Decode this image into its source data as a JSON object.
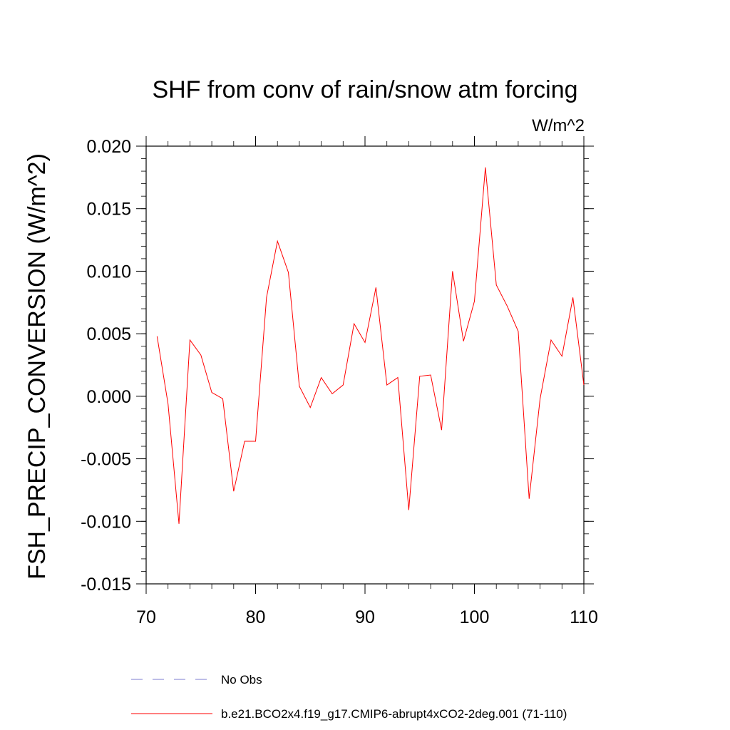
{
  "chart_data": {
    "type": "line",
    "title": "SHF from conv of rain/snow atm forcing",
    "units": "W/m^2",
    "xlabel": "",
    "ylabel": "FSH_PRECIP_CONVERSION  (W/m^2)",
    "xlim": [
      70,
      110
    ],
    "ylim": [
      -0.015,
      0.02
    ],
    "x_ticks": [
      70,
      80,
      90,
      100,
      110
    ],
    "x_tick_labels": [
      "70",
      "80",
      "90",
      "100",
      "110"
    ],
    "y_ticks": [
      -0.015,
      -0.01,
      -0.005,
      0.0,
      0.005,
      0.01,
      0.015,
      0.02
    ],
    "y_tick_labels": [
      "-0.015",
      "-0.010",
      "-0.005",
      "0.000",
      "0.005",
      "0.010",
      "0.015",
      "0.020"
    ],
    "grid": false,
    "series": [
      {
        "name": "b.e21.BCO2x4.f19_g17.CMIP6-abrupt4xCO2-2deg.001 (71-110)",
        "color": "#ff0000",
        "dash": "solid",
        "x": [
          71,
          72,
          73,
          74,
          75,
          76,
          77,
          78,
          79,
          80,
          81,
          82,
          83,
          84,
          85,
          86,
          87,
          88,
          89,
          90,
          91,
          92,
          93,
          94,
          95,
          96,
          97,
          98,
          99,
          100,
          101,
          102,
          103,
          104,
          105,
          106,
          107,
          108,
          109,
          110
        ],
        "values": [
          0.0048,
          -0.0006,
          -0.0102,
          0.0045,
          0.0033,
          0.0003,
          -0.0002,
          -0.0076,
          -0.0036,
          -0.0036,
          0.0079,
          0.0124,
          0.0099,
          0.0008,
          -0.0009,
          0.0015,
          0.0002,
          0.0009,
          0.0058,
          0.0043,
          0.0087,
          0.0009,
          0.0015,
          -0.0091,
          0.0016,
          0.0017,
          -0.0027,
          0.01,
          0.0044,
          0.0076,
          0.0183,
          0.0089,
          0.0072,
          0.0052,
          -0.0082,
          -0.0002,
          0.0045,
          0.0032,
          0.0079,
          0.0009
        ]
      }
    ],
    "legend": {
      "placement": "bottom",
      "entries": [
        {
          "label": "No Obs",
          "color": "#7b7bd1",
          "dash": "dashed"
        },
        {
          "label": "b.e21.BCO2x4.f19_g17.CMIP6-abrupt4xCO2-2deg.001 (71-110)",
          "color": "#ff0000",
          "dash": "solid"
        }
      ]
    }
  }
}
